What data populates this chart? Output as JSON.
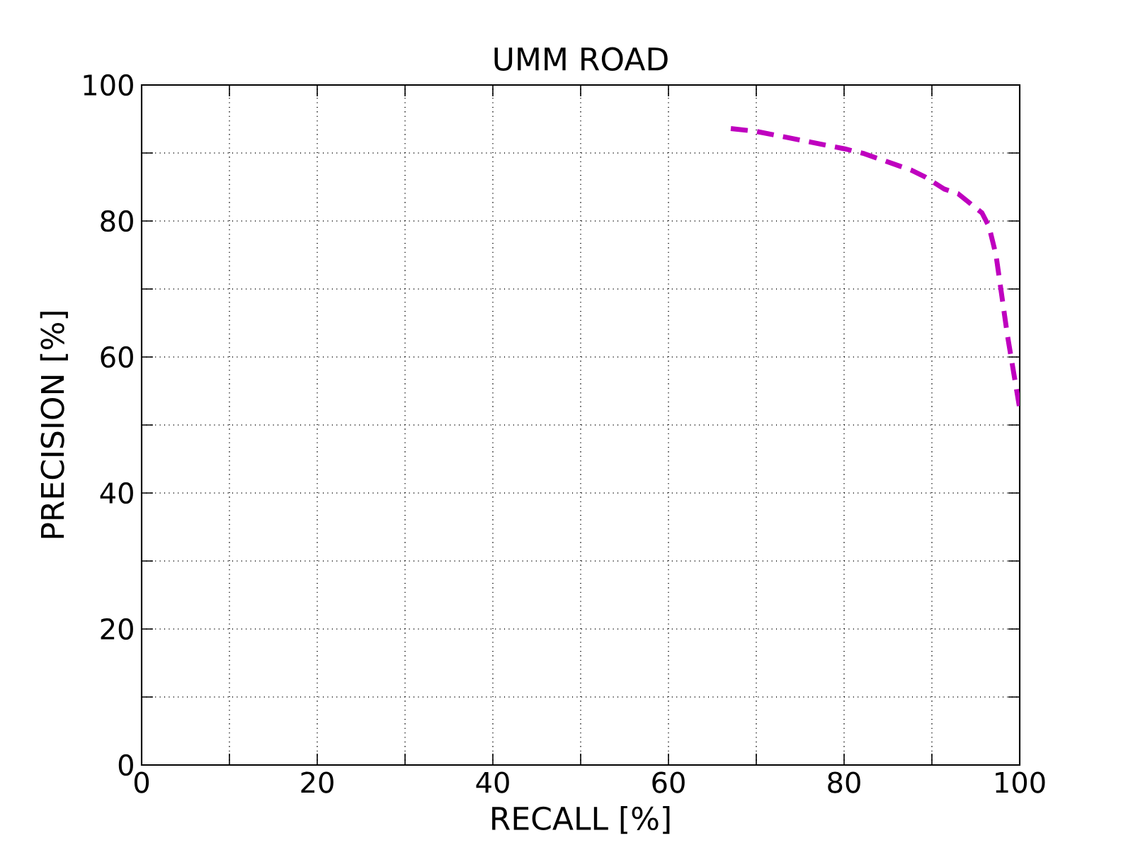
{
  "chart_data": {
    "type": "line",
    "title": "UMM ROAD",
    "xlabel": "RECALL [%]",
    "ylabel": "PRECISION [%]",
    "x": [
      67.1,
      69.9,
      80.1,
      82.3,
      87.6,
      89.2,
      91.4,
      93.0,
      95.7,
      96.5,
      97.3,
      98.6,
      100
    ],
    "series": [
      {
        "color": "#bf00bf",
        "values": [
          93.6,
          93.2,
          90.6,
          89.9,
          87.5,
          86.5,
          84.7,
          84.0,
          81.2,
          79.2,
          75.0,
          63.2,
          52.4
        ]
      }
    ],
    "xlim": [
      0,
      100
    ],
    "ylim": [
      0,
      100
    ],
    "xticks": [
      0,
      {
        "value": 10,
        "label": null
      },
      20,
      {
        "value": 30,
        "label": null
      },
      40,
      {
        "value": 50,
        "label": null
      },
      60,
      {
        "value": 70,
        "label": null
      },
      80,
      {
        "value": 90,
        "label": null
      },
      100
    ],
    "yticks": [
      0,
      {
        "value": 10,
        "label": null
      },
      20,
      {
        "value": 30,
        "label": null
      },
      40,
      {
        "value": 50,
        "label": null
      },
      60,
      {
        "value": 70,
        "label": null
      },
      80,
      {
        "value": 90,
        "label": null
      },
      100
    ],
    "grid": true,
    "line_style": "dashed",
    "marker": "none"
  }
}
